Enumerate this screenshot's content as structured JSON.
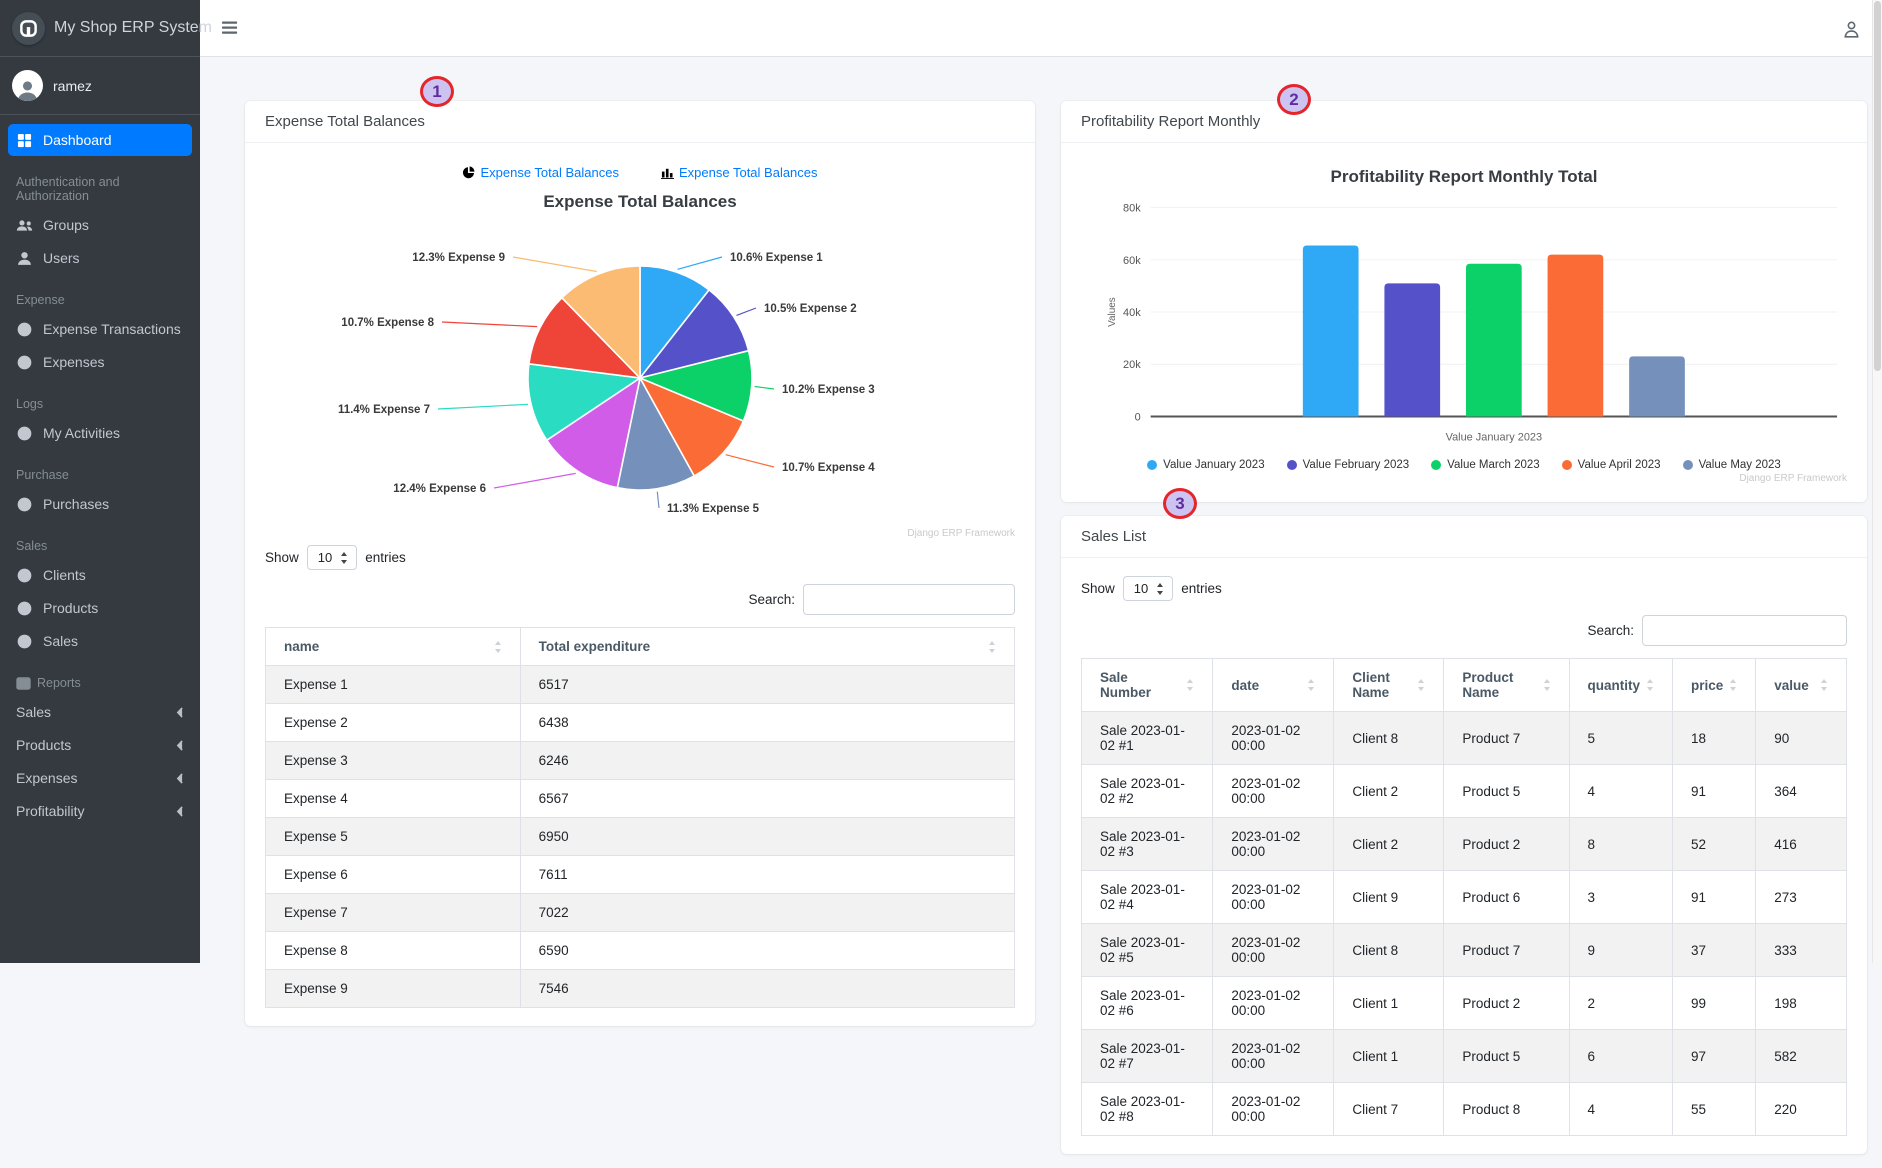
{
  "sidebar": {
    "brand": "My Shop ERP System",
    "user": "ramez",
    "sections": [
      {
        "items": [
          {
            "label": "Dashboard",
            "icon": "grid",
            "active": true
          }
        ]
      },
      {
        "header": "Authentication and Authorization",
        "items": [
          {
            "label": "Groups",
            "icon": "users"
          },
          {
            "label": "Users",
            "icon": "user"
          }
        ]
      },
      {
        "header": "Expense",
        "items": [
          {
            "label": "Expense Transactions",
            "icon": "circle"
          },
          {
            "label": "Expenses",
            "icon": "circle"
          }
        ]
      },
      {
        "header": "Logs",
        "items": [
          {
            "label": "My Activities",
            "icon": "circle"
          }
        ]
      },
      {
        "header": "Purchase",
        "items": [
          {
            "label": "Purchases",
            "icon": "circle"
          }
        ]
      },
      {
        "header": "Sales",
        "items": [
          {
            "label": "Clients",
            "icon": "circle"
          },
          {
            "label": "Products",
            "icon": "circle"
          },
          {
            "label": "Sales",
            "icon": "circle"
          }
        ]
      },
      {
        "header": "Reports",
        "header_icon": "chart",
        "items": [
          {
            "label": "Sales",
            "chevron": true
          },
          {
            "label": "Products",
            "chevron": true
          },
          {
            "label": "Expenses",
            "chevron": true
          },
          {
            "label": "Profitability",
            "chevron": true
          }
        ]
      }
    ]
  },
  "cards": {
    "expense": {
      "title": "Expense Total Balances",
      "tabs": [
        {
          "label": "Expense Total Balances",
          "icon": "pie-chart-icon"
        },
        {
          "label": "Expense Total Balances",
          "icon": "bar-chart-icon"
        }
      ],
      "chart_title": "Expense Total Balances",
      "watermark": "Django ERP Framework",
      "datatable": {
        "show_label": "Show",
        "page_size": "10",
        "entries_label": "entries",
        "search_label": "Search:",
        "columns": [
          "name",
          "Total expenditure"
        ],
        "rows": [
          [
            "Expense 1",
            "6517"
          ],
          [
            "Expense 2",
            "6438"
          ],
          [
            "Expense 3",
            "6246"
          ],
          [
            "Expense 4",
            "6567"
          ],
          [
            "Expense 5",
            "6950"
          ],
          [
            "Expense 6",
            "7611"
          ],
          [
            "Expense 7",
            "7022"
          ],
          [
            "Expense 8",
            "6590"
          ],
          [
            "Expense 9",
            "7546"
          ]
        ]
      }
    },
    "profitability": {
      "title": "Profitability Report Monthly",
      "chart_title": "Profitability Report Monthly Total",
      "watermark": "Django ERP Framework"
    },
    "sales": {
      "title": "Sales List",
      "datatable": {
        "show_label": "Show",
        "page_size": "10",
        "entries_label": "entries",
        "search_label": "Search:",
        "columns": [
          "Sale Number",
          "date",
          "Client Name",
          "Product Name",
          "quantity",
          "price",
          "value"
        ],
        "rows": [
          [
            "Sale 2023-01-02 #1",
            "2023-01-02 00:00",
            "Client 8",
            "Product 7",
            "5",
            "18",
            "90"
          ],
          [
            "Sale 2023-01-02 #2",
            "2023-01-02 00:00",
            "Client 2",
            "Product 5",
            "4",
            "91",
            "364"
          ],
          [
            "Sale 2023-01-02 #3",
            "2023-01-02 00:00",
            "Client 2",
            "Product 2",
            "8",
            "52",
            "416"
          ],
          [
            "Sale 2023-01-02 #4",
            "2023-01-02 00:00",
            "Client 9",
            "Product 6",
            "3",
            "91",
            "273"
          ],
          [
            "Sale 2023-01-02 #5",
            "2023-01-02 00:00",
            "Client 8",
            "Product 7",
            "9",
            "37",
            "333"
          ],
          [
            "Sale 2023-01-02 #6",
            "2023-01-02 00:00",
            "Client 1",
            "Product 2",
            "2",
            "99",
            "198"
          ],
          [
            "Sale 2023-01-02 #7",
            "2023-01-02 00:00",
            "Client 1",
            "Product 5",
            "6",
            "97",
            "582"
          ],
          [
            "Sale 2023-01-02 #8",
            "2023-01-02 00:00",
            "Client 7",
            "Product 8",
            "4",
            "55",
            "220"
          ]
        ]
      }
    }
  },
  "chart_data": [
    {
      "type": "pie",
      "title": "Expense Total Balances",
      "slices": [
        {
          "label": "Expense 1",
          "pct": 10.6,
          "value": 6517,
          "color": "#2fa9f5"
        },
        {
          "label": "Expense 2",
          "pct": 10.5,
          "value": 6438,
          "color": "#5551c9"
        },
        {
          "label": "Expense 3",
          "pct": 10.2,
          "value": 6246,
          "color": "#0bd168"
        },
        {
          "label": "Expense 4",
          "pct": 10.7,
          "value": 6567,
          "color": "#fb6b35"
        },
        {
          "label": "Expense 5",
          "pct": 11.3,
          "value": 6950,
          "color": "#7590bb"
        },
        {
          "label": "Expense 6",
          "pct": 12.4,
          "value": 7611,
          "color": "#d05ce8"
        },
        {
          "label": "Expense 7",
          "pct": 11.4,
          "value": 7022,
          "color": "#2adcc1"
        },
        {
          "label": "Expense 8",
          "pct": 10.7,
          "value": 6590,
          "color": "#ef4438"
        },
        {
          "label": "Expense 9",
          "pct": 12.3,
          "value": 7546,
          "color": "#fbbb72"
        }
      ]
    },
    {
      "type": "bar",
      "title": "Profitability Report Monthly Total",
      "ylabel": "Values",
      "xlabel": "Value January 2023",
      "ylim": [
        0,
        80000
      ],
      "yticks": [
        "0",
        "20k",
        "40k",
        "60k",
        "80k"
      ],
      "series": [
        {
          "name": "Value January 2023",
          "value": 65500,
          "color": "#2fa9f5"
        },
        {
          "name": "Value February 2023",
          "value": 51000,
          "color": "#5551c9"
        },
        {
          "name": "Value March 2023",
          "value": 58500,
          "color": "#0bd168"
        },
        {
          "name": "Value April 2023",
          "value": 62000,
          "color": "#fb6b35"
        },
        {
          "name": "Value May 2023",
          "value": 23000,
          "color": "#7590bb"
        }
      ],
      "legend_position": "bottom"
    }
  ],
  "annotations": [
    "1",
    "2",
    "3"
  ]
}
